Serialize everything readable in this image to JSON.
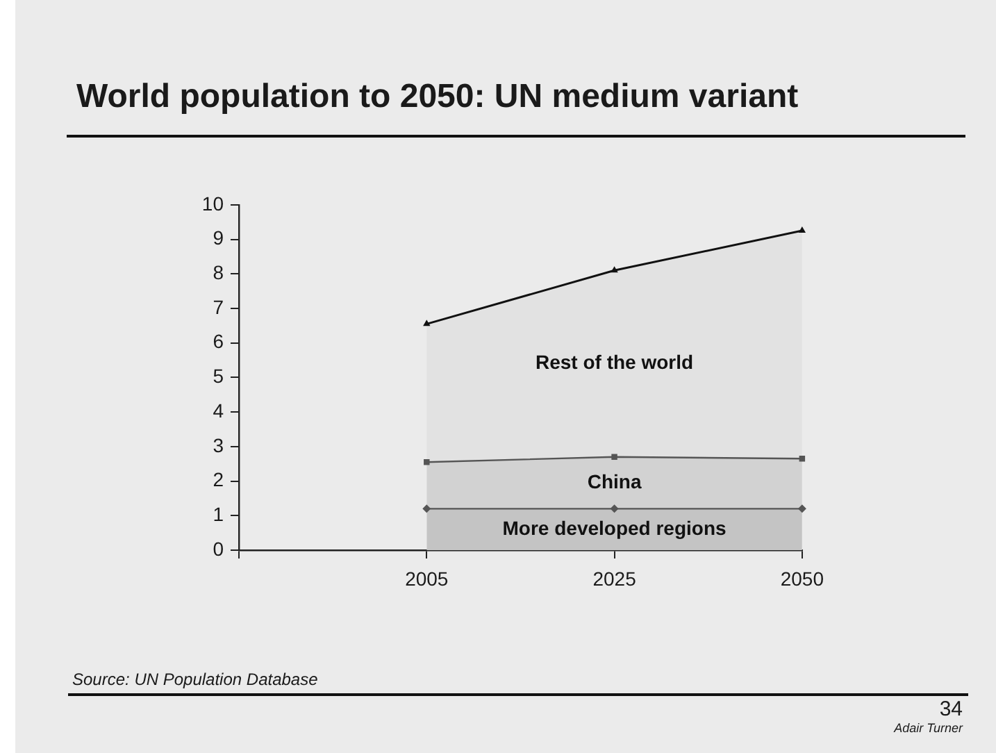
{
  "chart_data": {
    "type": "area",
    "title": "World population to 2050: UN medium variant",
    "categories": [
      null,
      "2005",
      "2025",
      "2050"
    ],
    "stacked": true,
    "ylim": [
      0,
      10
    ],
    "yticks": [
      0,
      1,
      2,
      3,
      4,
      5,
      6,
      7,
      8,
      9,
      10
    ],
    "grid": false,
    "legend": false,
    "series": [
      {
        "name": "More developed regions",
        "color": "#c4c4c4",
        "marker": "diamond",
        "values": [
          null,
          1.2,
          1.2,
          1.2
        ]
      },
      {
        "name": "China",
        "color": "#d2d2d2",
        "marker": "square",
        "values": [
          null,
          1.35,
          1.5,
          1.45
        ]
      },
      {
        "name": "Rest of the world",
        "color": "#e2e2e2",
        "marker": "triangle",
        "values": [
          null,
          4.0,
          5.4,
          6.6
        ]
      }
    ],
    "annotations": [
      "Source: UN Population Database",
      "34",
      "Adair Turner"
    ]
  }
}
